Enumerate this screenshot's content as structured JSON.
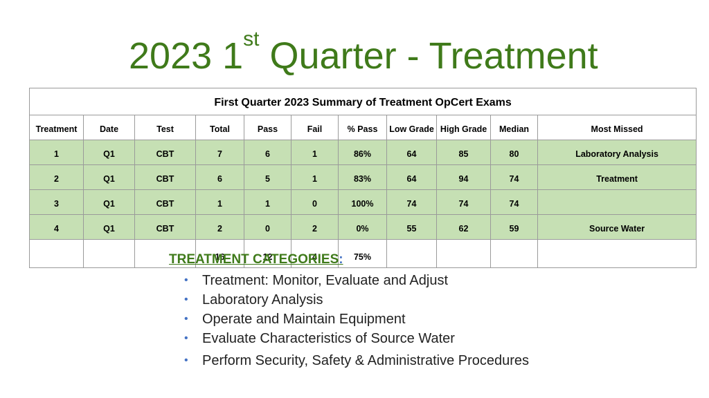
{
  "slide": {
    "title_prefix": "2023 1",
    "title_sup": "st",
    "title_suffix": " Quarter - Treatment"
  },
  "table": {
    "caption": "First Quarter 2023 Summary of Treatment OpCert Exams",
    "headers": [
      "Treatment",
      "Date",
      "Test",
      "Total",
      "Pass",
      "Fail",
      "% Pass",
      "Low Grade",
      "High Grade",
      "Median",
      "Most Missed"
    ],
    "rows": [
      [
        "1",
        "Q1",
        "CBT",
        "7",
        "6",
        "1",
        "86%",
        "64",
        "85",
        "80",
        "Laboratory Analysis"
      ],
      [
        "2",
        "Q1",
        "CBT",
        "6",
        "5",
        "1",
        "83%",
        "64",
        "94",
        "74",
        "Treatment"
      ],
      [
        "3",
        "Q1",
        "CBT",
        "1",
        "1",
        "0",
        "100%",
        "74",
        "74",
        "74",
        ""
      ],
      [
        "4",
        "Q1",
        "CBT",
        "2",
        "0",
        "2",
        "0%",
        "55",
        "62",
        "59",
        "Source Water"
      ]
    ],
    "totals": [
      "",
      "",
      "",
      "16",
      "12",
      "4",
      "75%",
      "",
      "",
      "",
      ""
    ]
  },
  "categories": {
    "heading": "TREATMENT CATEGORIES",
    "heading_colon": ":",
    "items": [
      "Treatment: Monitor, Evaluate and Adjust",
      "Laboratory Analysis",
      "Operate and Maintain Equipment",
      "Evaluate Characteristics of Source Water",
      "Perform Security, Safety & Administrative Procedures"
    ]
  },
  "colors": {
    "title_green": "#3f7a1a",
    "row_fill_green": "#c6e0b4",
    "bullet_blue": "#4472c4",
    "border_gray": "#9a9a9a"
  }
}
